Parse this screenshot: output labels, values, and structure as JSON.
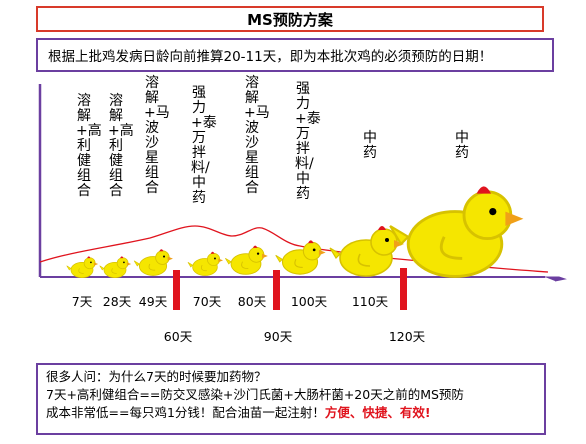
{
  "title": "MS预防方案",
  "subtitle": "根据上批鸡发病日龄向前推算20-11天，即为本批次鸡的必须预防的日期！",
  "treatments": [
    {
      "id": "t1",
      "text": "溶解+高利健组合"
    },
    {
      "id": "t2",
      "text": "溶解+高利健组合"
    },
    {
      "id": "t3",
      "text": "溶解+马波沙星组合"
    },
    {
      "id": "t4",
      "text": "强力+泰万拌料/中药"
    },
    {
      "id": "t5",
      "text": "溶解+马波沙星组合"
    },
    {
      "id": "t6",
      "text": "强力+泰万拌料/中药"
    },
    {
      "id": "t7",
      "text": "中药"
    },
    {
      "id": "t8",
      "text": "中药"
    }
  ],
  "days_top": [
    "7天",
    "28天",
    "49天",
    "70天",
    "80天",
    "100天",
    "110天"
  ],
  "days_bottom": [
    "60天",
    "90天",
    "120天"
  ],
  "note": {
    "line1": "很多人问：为什么7天的时候要加药物？",
    "line2": "7天+高利健组合==防交叉感染+沙门氏菌+大肠杆菌+20天之前的MS预防",
    "line3_prefix": "成本非常低==每只鸡1分钱！配合油苗一起注射！",
    "line3_highlight": "方便、快捷、有效!"
  },
  "colors": {
    "title_border": "#d83a2a",
    "frame_border": "#6b3fa0",
    "axis": "#6b3fa0",
    "curve": "#e0141e",
    "marker": "#e0141e",
    "chick": "#f5e600"
  }
}
